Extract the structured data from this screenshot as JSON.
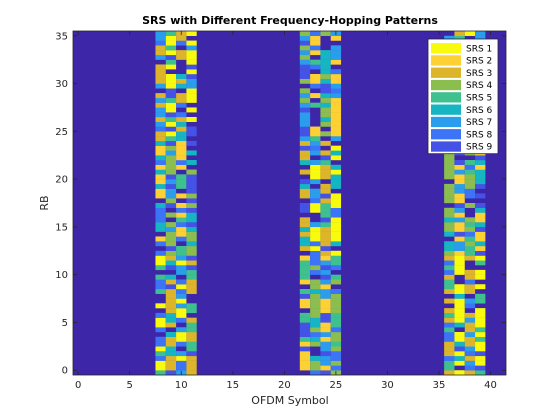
{
  "chart_data": {
    "type": "heatmap",
    "title": "SRS with Different Frequency-Hopping Patterns",
    "xlabel": "OFDM Symbol",
    "ylabel": "RB",
    "xlim": [
      -0.5,
      41.5
    ],
    "ylim": [
      -0.5,
      35.5
    ],
    "x_ticks": [
      "0",
      "5",
      "10",
      "15",
      "20",
      "25",
      "30",
      "35",
      "40"
    ],
    "y_ticks": [
      "0",
      "5",
      "10",
      "15",
      "20",
      "25",
      "30",
      "35"
    ],
    "grid": false,
    "legend_position": "top-right",
    "background_color": "#3e26a8",
    "series": [
      {
        "name": "SRS 1",
        "color": "#f9fb0e"
      },
      {
        "name": "SRS 2",
        "color": "#fdd133"
      },
      {
        "name": "SRS 3",
        "color": "#dcb52a"
      },
      {
        "name": "SRS 4",
        "color": "#8bbe4e"
      },
      {
        "name": "SRS 5",
        "color": "#3ec18f"
      },
      {
        "name": "SRS 6",
        "color": "#16b5c4"
      },
      {
        "name": "SRS 7",
        "color": "#2a9ded"
      },
      {
        "name": "SRS 8",
        "color": "#3c74f8"
      },
      {
        "name": "SRS 9",
        "color": "#4552e6"
      }
    ],
    "symbol_bands": [
      {
        "symbols": [
          8,
          9,
          10,
          11
        ],
        "hop_boundary_rb": [
          12,
          24
        ]
      },
      {
        "symbols": [
          22,
          23,
          24,
          25
        ],
        "hop_boundary_rb": [
          12,
          24
        ]
      },
      {
        "symbols": [
          36,
          37,
          38,
          39
        ],
        "hop_boundary_rb": [
          12,
          24
        ]
      }
    ],
    "rb_per_cell": 0.5
  }
}
